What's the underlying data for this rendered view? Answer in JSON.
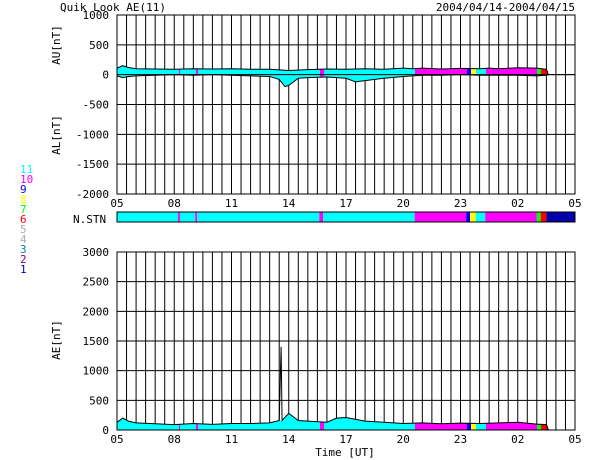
{
  "header": {
    "title": "Quik Look AE(11)",
    "date_range": "2004/04/14-2004/04/15"
  },
  "station_legend": {
    "label": "N.STN",
    "items": [
      {
        "value": "11",
        "color": "#00ffff"
      },
      {
        "value": "10",
        "color": "#ff00ff"
      },
      {
        "value": "9",
        "color": "#0000ff"
      },
      {
        "value": "8",
        "color": "#ffff00"
      },
      {
        "value": "7",
        "color": "#00ff00"
      },
      {
        "value": "6",
        "color": "#ff0000"
      },
      {
        "value": "5",
        "color": "#aaaaaa"
      },
      {
        "value": "4",
        "color": "#aaaaaa"
      },
      {
        "value": "3",
        "color": "#008888"
      },
      {
        "value": "2",
        "color": "#880088"
      },
      {
        "value": "1",
        "color": "#0000aa"
      }
    ]
  },
  "chart_data": [
    {
      "type": "area",
      "panel": "AU/AL",
      "x_unit": "UT hour from 05 (day 1)",
      "xticklabels": [
        "05",
        "08",
        "11",
        "14",
        "17",
        "20",
        "23",
        "02",
        "05"
      ],
      "xticks": [
        0,
        3,
        6,
        9,
        12,
        15,
        18,
        21,
        24
      ],
      "xlim": [
        0,
        24
      ],
      "ylim_top": [
        -2000,
        1000
      ],
      "yticks": [
        1000,
        500,
        0,
        -500,
        -1000,
        -1500,
        -2000
      ],
      "ylabel_upper": "AU[nT]",
      "ylabel_lower": "AL[nT]",
      "series": [
        {
          "name": "AU",
          "x": [
            0,
            0.3,
            0.6,
            1,
            2,
            3,
            4,
            5,
            6,
            7,
            8,
            8.5,
            9,
            10,
            11,
            12,
            13,
            14,
            15,
            15.5,
            16,
            17,
            18,
            19,
            19.5,
            20,
            21,
            22,
            22.5,
            22.6
          ],
          "values": [
            110,
            150,
            120,
            100,
            95,
            90,
            100,
            95,
            100,
            90,
            90,
            80,
            70,
            85,
            95,
            90,
            100,
            90,
            110,
            100,
            110,
            95,
            105,
            100,
            110,
            100,
            115,
            110,
            90,
            0
          ]
        },
        {
          "name": "AL",
          "x": [
            0,
            0.3,
            0.6,
            1,
            2,
            3,
            4,
            5,
            6,
            7,
            8,
            8.5,
            8.8,
            9,
            9.5,
            10,
            11,
            12,
            12.5,
            13,
            14,
            15,
            15.5,
            16,
            17,
            18,
            19,
            20,
            21,
            22,
            22.5,
            22.6
          ],
          "values": [
            -20,
            -50,
            -30,
            -20,
            -10,
            0,
            -10,
            0,
            -10,
            -20,
            -30,
            -80,
            -200,
            -180,
            -60,
            -50,
            -40,
            -60,
            -120,
            -100,
            -60,
            -30,
            -20,
            -10,
            -10,
            0,
            -10,
            -10,
            -10,
            -20,
            -10,
            0
          ]
        }
      ]
    },
    {
      "type": "line",
      "panel": "N.STN",
      "description": "number of stations contributing, colored segments",
      "segments": [
        {
          "start": 0,
          "end": 3.2,
          "stations": 11
        },
        {
          "start": 3.2,
          "end": 3.3,
          "stations": 10
        },
        {
          "start": 3.3,
          "end": 4.1,
          "stations": 11
        },
        {
          "start": 4.1,
          "end": 4.2,
          "stations": 10
        },
        {
          "start": 4.2,
          "end": 10.6,
          "stations": 11
        },
        {
          "start": 10.6,
          "end": 10.8,
          "stations": 10
        },
        {
          "start": 10.8,
          "end": 15.6,
          "stations": 11
        },
        {
          "start": 15.6,
          "end": 18.3,
          "stations": 10
        },
        {
          "start": 18.3,
          "end": 18.5,
          "stations": 9
        },
        {
          "start": 18.5,
          "end": 18.8,
          "stations": 8
        },
        {
          "start": 18.8,
          "end": 19.3,
          "stations": 11
        },
        {
          "start": 19.3,
          "end": 22.0,
          "stations": 10
        },
        {
          "start": 22.0,
          "end": 22.2,
          "stations": 7
        },
        {
          "start": 22.2,
          "end": 22.5,
          "stations": 6
        },
        {
          "start": 22.5,
          "end": 24,
          "stations": 1
        }
      ]
    },
    {
      "type": "area",
      "panel": "AE",
      "xlim": [
        0,
        24
      ],
      "ylim": [
        0,
        3000
      ],
      "yticks": [
        3000,
        2500,
        2000,
        1500,
        1000,
        500,
        0
      ],
      "ylabel": "AE[nT]",
      "xlabel": "Time [UT]",
      "series": [
        {
          "name": "AE",
          "x": [
            0,
            0.3,
            0.6,
            1,
            2,
            3,
            4,
            5,
            6,
            7,
            8,
            8.5,
            8.6,
            8.65,
            8.7,
            9,
            9.5,
            10,
            11,
            11.5,
            12,
            13,
            14,
            15,
            16,
            17,
            18,
            19,
            20,
            21,
            22,
            22.5,
            22.6
          ],
          "values": [
            130,
            200,
            150,
            120,
            105,
            90,
            110,
            95,
            110,
            110,
            120,
            160,
            1400,
            160,
            180,
            280,
            160,
            150,
            130,
            200,
            210,
            150,
            130,
            110,
            120,
            105,
            115,
            110,
            120,
            130,
            100,
            90,
            0
          ]
        }
      ]
    }
  ]
}
